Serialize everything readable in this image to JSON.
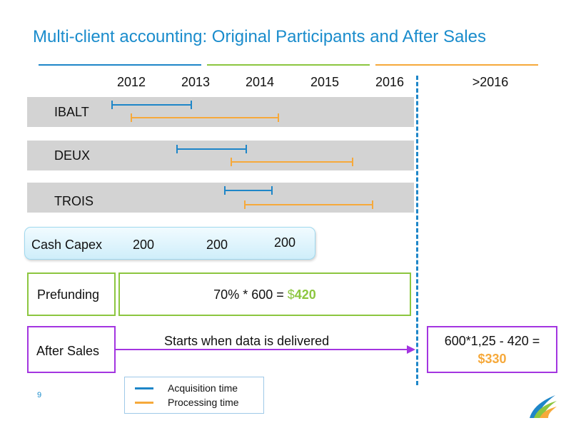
{
  "title": "Multi-client accounting: Original Participants and After Sales",
  "colors": {
    "title": "#1a8ccc",
    "acquisition": "#1e86c8",
    "processing": "#f6a93b",
    "green": "#8cc63f",
    "purple": "#a335e0"
  },
  "years": [
    "2012",
    "2013",
    "2014",
    "2015",
    "2016",
    ">2016"
  ],
  "rows": [
    {
      "label": "IBALT",
      "acquisition": [
        2012.0,
        2013.25
      ],
      "processing": [
        2012.3,
        2014.6
      ]
    },
    {
      "label": "DEUX",
      "acquisition": [
        2013.0,
        2014.1
      ],
      "processing": [
        2013.85,
        2015.75
      ]
    },
    {
      "label": "TROIS",
      "acquisition": [
        2013.75,
        2014.5
      ],
      "processing": [
        2014.05,
        2016.05
      ]
    }
  ],
  "capex": {
    "label": "Cash Capex",
    "values": [
      "200",
      "200",
      "200"
    ]
  },
  "prefunding": {
    "label": "Prefunding",
    "formula": "70% * 600 = ",
    "dollar": "$",
    "amount": "420"
  },
  "after_sales": {
    "label": "After Sales",
    "note": "Starts when data is delivered",
    "formula": "600*1,25 - 420 =",
    "amount": "$330"
  },
  "legend": {
    "acquisition": "Acquisition time",
    "processing": "Processing time"
  },
  "page_number": "9",
  "logo": "company-logo"
}
